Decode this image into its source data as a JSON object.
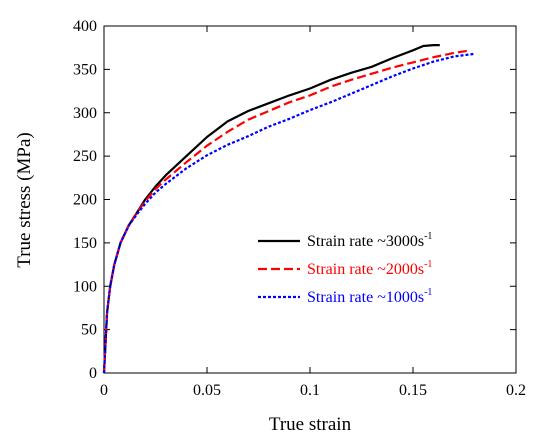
{
  "chart_data": {
    "type": "line",
    "xlabel": "True strain",
    "ylabel": "True stress (MPa)",
    "xlim": [
      0,
      0.2
    ],
    "ylim": [
      0,
      400
    ],
    "x_ticks": [
      "0",
      "0.05",
      "0.1",
      "0.15",
      "0.2"
    ],
    "y_ticks": [
      "0",
      "50",
      "100",
      "150",
      "200",
      "250",
      "300",
      "350",
      "400"
    ],
    "grid": false,
    "legend_position": "center-right",
    "series": [
      {
        "name": "Strain rate ~3000s",
        "name_superscript": "-1",
        "color": "#000000",
        "dash": "solid",
        "x": [
          0,
          0.0015,
          0.003,
          0.005,
          0.008,
          0.012,
          0.016,
          0.02,
          0.025,
          0.03,
          0.04,
          0.05,
          0.06,
          0.07,
          0.08,
          0.09,
          0.1,
          0.11,
          0.12,
          0.13,
          0.14,
          0.15,
          0.155,
          0.16,
          0.163
        ],
        "y": [
          0,
          70,
          100,
          125,
          150,
          170,
          185,
          200,
          215,
          228,
          250,
          272,
          290,
          302,
          311,
          320,
          328,
          338,
          346,
          353,
          363,
          372,
          377,
          378,
          378
        ]
      },
      {
        "name": "Strain rate ~2000s",
        "name_superscript": "-1",
        "color": "#ff0000",
        "dash": "dashed",
        "x": [
          0,
          0.0015,
          0.003,
          0.005,
          0.008,
          0.012,
          0.016,
          0.02,
          0.025,
          0.03,
          0.04,
          0.05,
          0.06,
          0.07,
          0.08,
          0.09,
          0.1,
          0.11,
          0.12,
          0.13,
          0.14,
          0.15,
          0.16,
          0.17,
          0.178
        ],
        "y": [
          0,
          70,
          100,
          125,
          150,
          170,
          185,
          198,
          212,
          223,
          243,
          262,
          278,
          292,
          302,
          312,
          320,
          330,
          338,
          345,
          352,
          358,
          364,
          369,
          372
        ]
      },
      {
        "name": "Strain rate ~1000s",
        "name_superscript": "-1",
        "color": "#0000ff",
        "dash": "dotted",
        "x": [
          0,
          0.0015,
          0.003,
          0.005,
          0.008,
          0.012,
          0.016,
          0.02,
          0.025,
          0.03,
          0.04,
          0.05,
          0.06,
          0.07,
          0.08,
          0.09,
          0.1,
          0.11,
          0.12,
          0.13,
          0.14,
          0.15,
          0.16,
          0.17,
          0.18
        ],
        "y": [
          0,
          70,
          100,
          125,
          150,
          170,
          183,
          195,
          208,
          218,
          236,
          251,
          263,
          273,
          284,
          293,
          303,
          312,
          322,
          332,
          342,
          351,
          359,
          365,
          368
        ]
      }
    ]
  }
}
